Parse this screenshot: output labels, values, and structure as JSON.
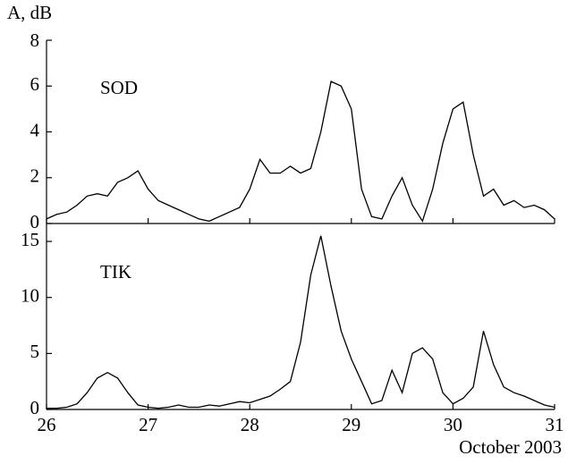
{
  "chart_data": [
    {
      "type": "line",
      "ylabel": "A, dB",
      "x": [
        26,
        26.1,
        26.2,
        26.3,
        26.4,
        26.5,
        26.6,
        26.7,
        26.8,
        26.9,
        27,
        27.1,
        27.2,
        27.3,
        27.4,
        27.5,
        27.6,
        27.7,
        27.8,
        27.9,
        28,
        28.1,
        28.2,
        28.3,
        28.4,
        28.5,
        28.6,
        28.7,
        28.8,
        28.9,
        29,
        29.1,
        29.2,
        29.3,
        29.4,
        29.5,
        29.6,
        29.7,
        29.8,
        29.9,
        30,
        30.1,
        30.2,
        30.3,
        30.4,
        30.5,
        30.6,
        30.7,
        30.8,
        30.9,
        31
      ],
      "series": [
        {
          "name": "SOD",
          "color": "#000000",
          "values": [
            0.2,
            0.4,
            0.5,
            0.8,
            1.2,
            1.3,
            1.2,
            1.8,
            2.0,
            2.3,
            1.5,
            1.0,
            0.8,
            0.6,
            0.4,
            0.2,
            0.1,
            0.3,
            0.5,
            0.7,
            1.5,
            2.8,
            2.2,
            2.2,
            2.5,
            2.2,
            2.4,
            4.0,
            6.2,
            6.0,
            5.0,
            1.5,
            0.3,
            0.2,
            1.2,
            2.0,
            0.8,
            0.1,
            1.5,
            3.5,
            5.0,
            5.3,
            3.0,
            1.2,
            1.5,
            0.8,
            1.0,
            0.7,
            0.8,
            0.6,
            0.2
          ]
        }
      ],
      "xlim": [
        26,
        31
      ],
      "xticks": [
        26,
        27,
        28,
        29,
        30,
        31
      ],
      "ylim": [
        0,
        8
      ],
      "yticks": [
        0,
        2,
        4,
        6,
        8
      ]
    },
    {
      "type": "line",
      "xlabel": "October 2003",
      "x": [
        26,
        26.1,
        26.2,
        26.3,
        26.4,
        26.5,
        26.6,
        26.7,
        26.8,
        26.9,
        27,
        27.1,
        27.2,
        27.3,
        27.4,
        27.5,
        27.6,
        27.7,
        27.8,
        27.9,
        28,
        28.1,
        28.2,
        28.3,
        28.4,
        28.5,
        28.6,
        28.7,
        28.8,
        28.9,
        29,
        29.1,
        29.2,
        29.3,
        29.4,
        29.5,
        29.6,
        29.7,
        29.8,
        29.9,
        30,
        30.1,
        30.2,
        30.3,
        30.4,
        30.5,
        30.6,
        30.7,
        30.8,
        30.9,
        31
      ],
      "series": [
        {
          "name": "TIK",
          "color": "#000000",
          "values": [
            0.1,
            0.1,
            0.2,
            0.5,
            1.5,
            2.8,
            3.3,
            2.8,
            1.5,
            0.4,
            0.2,
            0.1,
            0.2,
            0.4,
            0.2,
            0.2,
            0.4,
            0.3,
            0.5,
            0.7,
            0.6,
            0.9,
            1.2,
            1.8,
            2.5,
            6,
            12,
            15.5,
            11,
            7,
            4.5,
            2.5,
            0.5,
            0.8,
            3.5,
            1.5,
            5,
            5.5,
            4.5,
            1.5,
            0.5,
            1.0,
            2.0,
            7,
            4,
            2,
            1.5,
            1.2,
            0.8,
            0.4,
            0.2
          ]
        }
      ],
      "xlim": [
        26,
        31
      ],
      "xticks": [
        26,
        27,
        28,
        29,
        30,
        31
      ],
      "ylim": [
        0,
        16.6
      ],
      "yticks": [
        0,
        5,
        10,
        15
      ]
    }
  ]
}
